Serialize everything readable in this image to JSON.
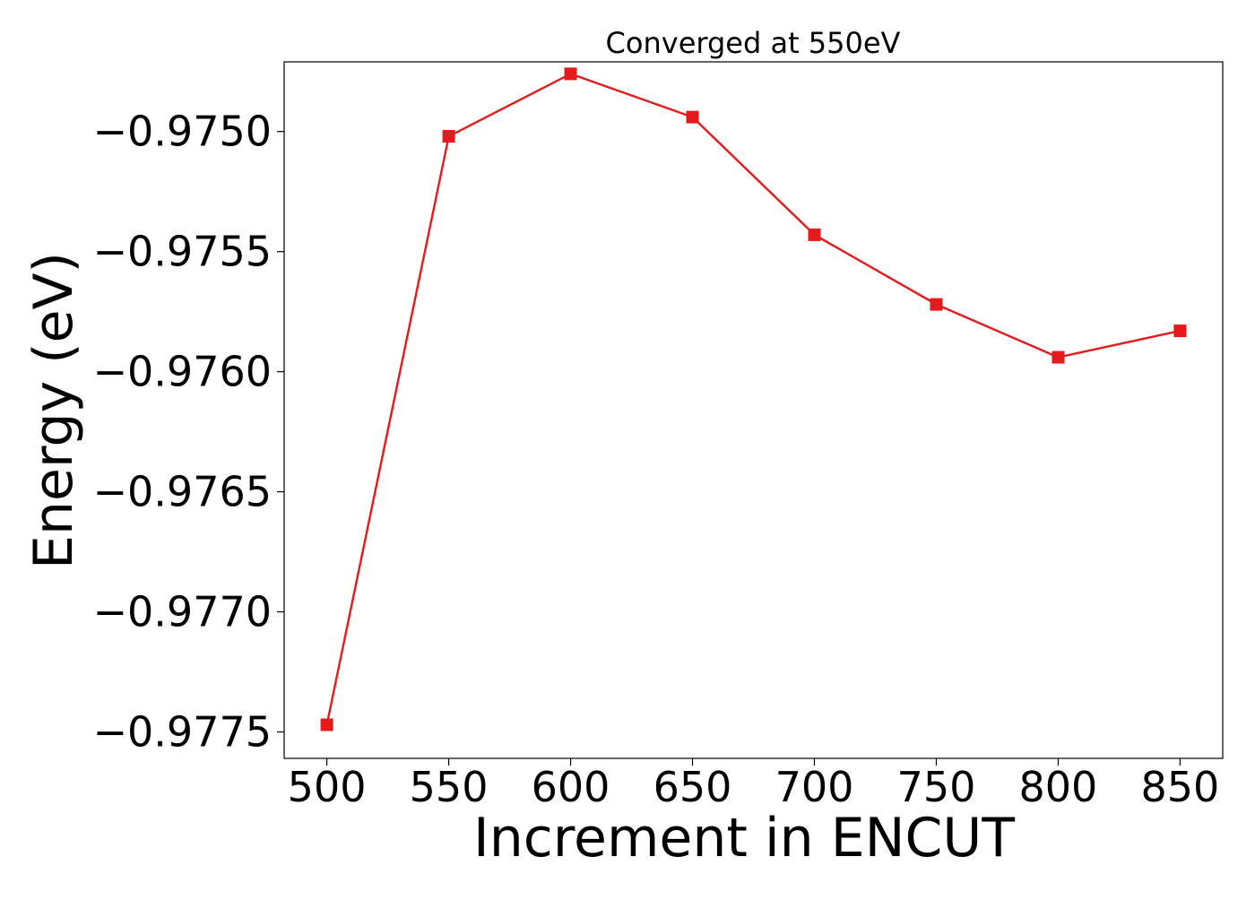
{
  "chart_data": {
    "type": "line",
    "title": "Converged at 550eV",
    "xlabel": "Increment in ENCUT",
    "ylabel": "Energy (eV)",
    "x": [
      500,
      550,
      600,
      650,
      700,
      750,
      800,
      850
    ],
    "series": [
      {
        "values": [
          -0.97747,
          -0.97502,
          -0.97476,
          -0.97494,
          -0.97543,
          -0.97572,
          -0.97594,
          -0.97583
        ],
        "color": "#e41a1c",
        "marker": "square"
      }
    ],
    "xlim": [
      482.5,
      867.5
    ],
    "ylim": [
      -0.97761,
      -0.97471
    ],
    "xticks": [
      500,
      550,
      600,
      650,
      700,
      750,
      800,
      850
    ],
    "xtick_labels": [
      "500",
      "550",
      "600",
      "650",
      "700",
      "750",
      "800",
      "850"
    ],
    "yticks": [
      -0.9775,
      -0.977,
      -0.9765,
      -0.976,
      -0.9755,
      -0.975
    ],
    "ytick_labels": [
      "−0.9775",
      "−0.9770",
      "−0.9765",
      "−0.9760",
      "−0.9755",
      "−0.9750"
    ],
    "grid": false,
    "legend": "none"
  }
}
